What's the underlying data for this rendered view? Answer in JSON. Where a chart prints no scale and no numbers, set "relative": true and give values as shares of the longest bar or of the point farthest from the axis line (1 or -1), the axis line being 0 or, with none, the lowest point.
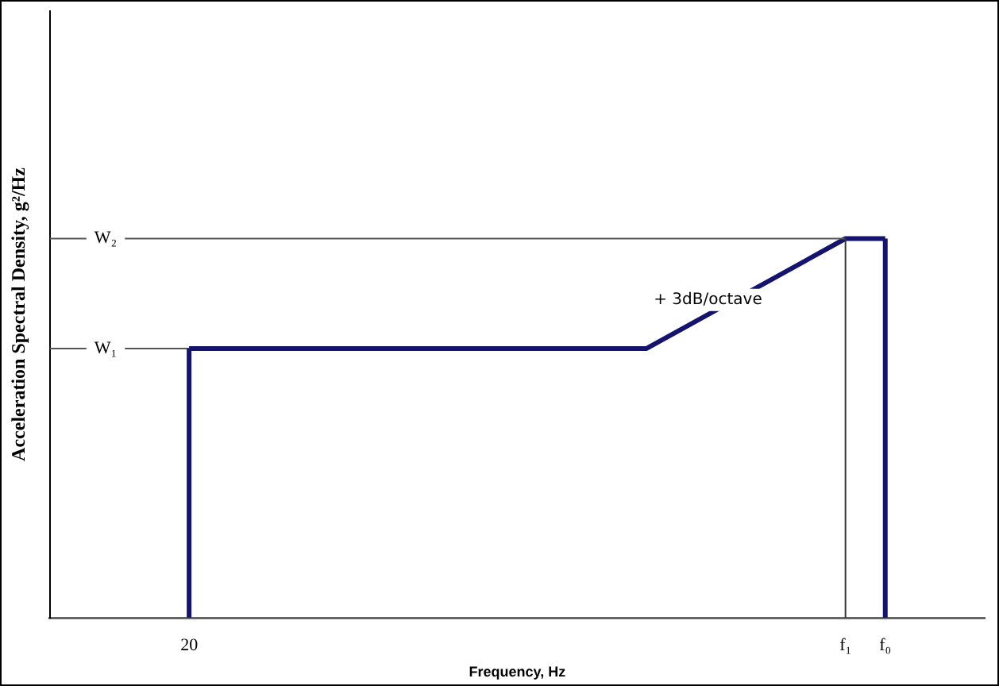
{
  "chart_data": {
    "type": "line",
    "relative": true,
    "xlabel": "Frequency, Hz",
    "ylabel": "Acceleration Spectral Density, g²/Hz",
    "categories": [
      null,
      null,
      null,
      null,
      null,
      null,
      null,
      "20",
      null,
      null,
      null,
      null,
      null,
      null,
      null,
      null,
      null,
      null,
      null,
      null,
      null,
      null,
      null,
      null,
      null,
      null,
      null,
      null,
      null,
      null,
      null,
      null,
      null,
      null,
      null,
      null,
      null,
      null,
      null,
      null,
      "f₁",
      null,
      "f₀",
      null,
      null,
      null,
      null,
      null
    ],
    "series": [
      {
        "color": "#14146e",
        "values": [
          null,
          null,
          null,
          null,
          null,
          null,
          null,
          0.71,
          null,
          null,
          null,
          null,
          null,
          null,
          null,
          null,
          null,
          null,
          null,
          null,
          null,
          null,
          null,
          null,
          null,
          null,
          null,
          null,
          null,
          null,
          0.71,
          null,
          null,
          null,
          null,
          null,
          null,
          null,
          null,
          null,
          1,
          null,
          1,
          null,
          null,
          null,
          null,
          null
        ]
      }
    ],
    "ref_lines": [
      {
        "axis": "y",
        "value": 0.71,
        "label": "W₁",
        "color": "#555555"
      },
      {
        "axis": "y",
        "value": 1,
        "label": "W₂",
        "color": "#555555"
      },
      {
        "axis": "x",
        "value": "20",
        "label": null,
        "color": "#14146e"
      },
      {
        "axis": "x",
        "value": "f₁",
        "label": null,
        "color": "#333333"
      },
      {
        "axis": "x",
        "value": "f₀",
        "label": null,
        "color": "#14146e"
      }
    ],
    "annotations": [
      "+ 3dB/octave"
    ],
    "grid": false,
    "legend": false,
    "marker": "none",
    "line_style": "solid"
  }
}
